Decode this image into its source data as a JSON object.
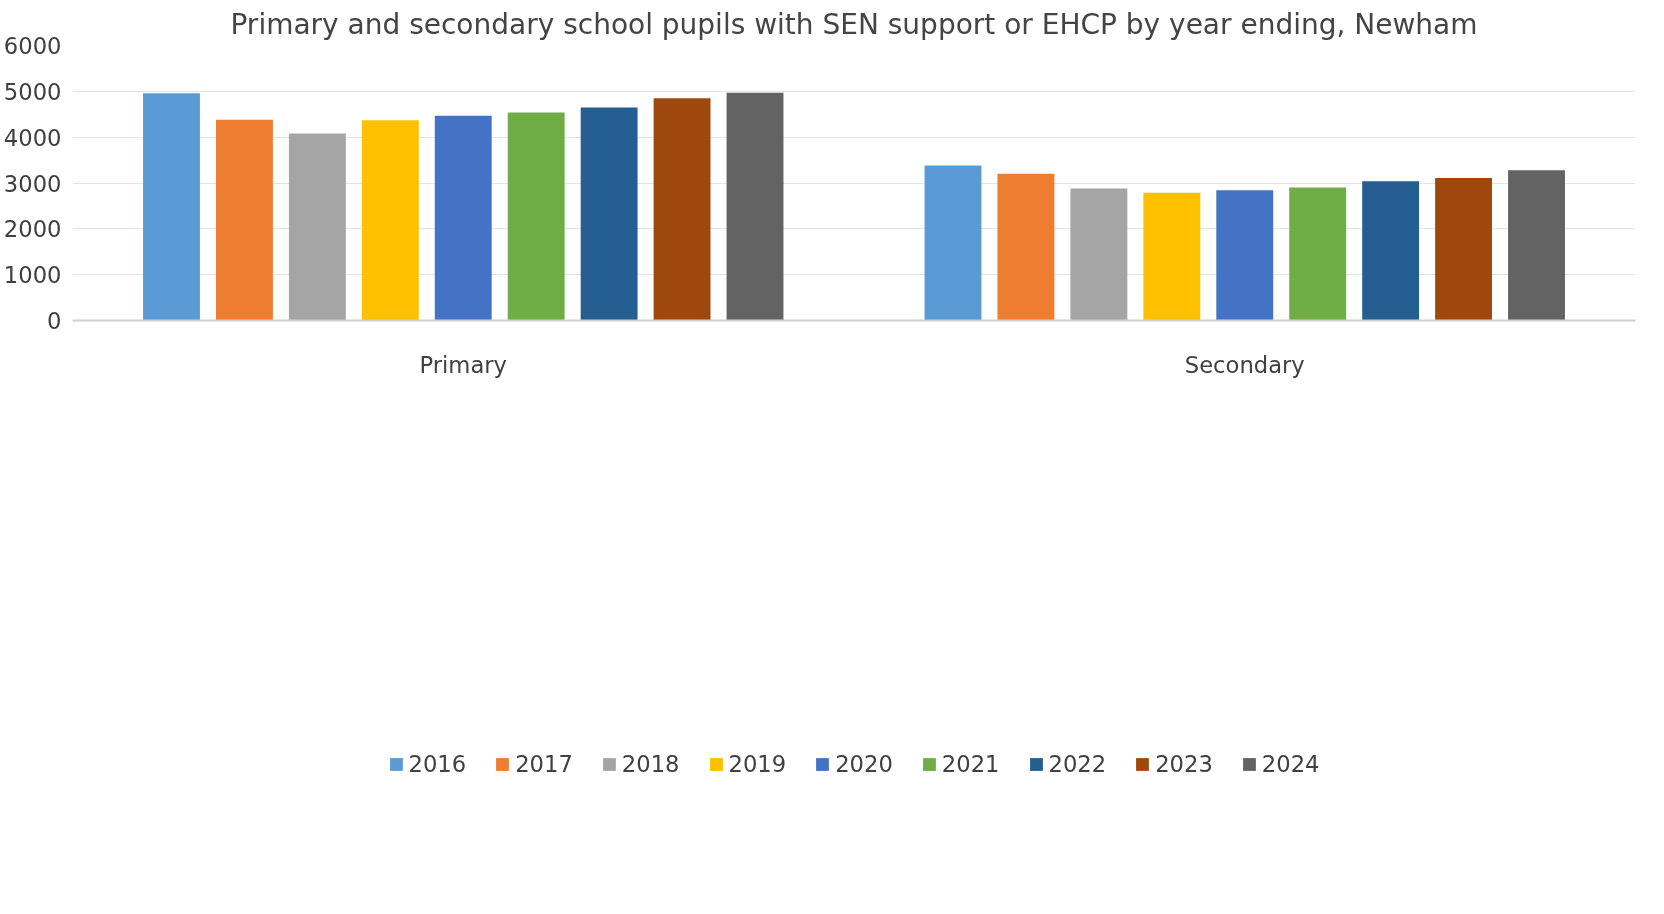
{
  "chart_data": {
    "type": "bar",
    "title": "Primary and secondary school pupils with SEN support or EHCP by year ending, Newham",
    "categories": [
      "Primary",
      "Secondary"
    ],
    "series": [
      {
        "name": "2016",
        "color": "#5b9bd5",
        "values": [
          4960,
          3380
        ]
      },
      {
        "name": "2017",
        "color": "#ed7d31",
        "values": [
          4380,
          3200
        ]
      },
      {
        "name": "2018",
        "color": "#a5a5a5",
        "values": [
          4080,
          2880
        ]
      },
      {
        "name": "2019",
        "color": "#ffc000",
        "values": [
          4370,
          2790
        ]
      },
      {
        "name": "2020",
        "color": "#4472c4",
        "values": [
          4470,
          2840
        ]
      },
      {
        "name": "2021",
        "color": "#70ad47",
        "values": [
          4540,
          2900
        ]
      },
      {
        "name": "2022",
        "color": "#255e91",
        "values": [
          4650,
          3040
        ]
      },
      {
        "name": "2023",
        "color": "#9e480e",
        "values": [
          4850,
          3110
        ]
      },
      {
        "name": "2024",
        "color": "#636363",
        "values": [
          4970,
          3280
        ]
      }
    ],
    "ylim": [
      0,
      6000
    ],
    "yticks": [
      0,
      1000,
      2000,
      3000,
      4000,
      5000,
      6000
    ],
    "grid": "y",
    "legend": "bottom"
  }
}
